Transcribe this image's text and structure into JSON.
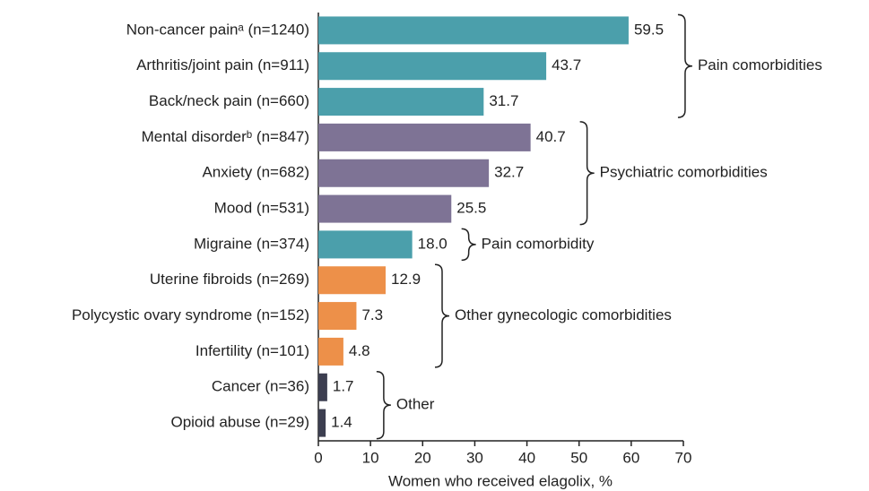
{
  "chart_data": {
    "type": "hbar",
    "categories": [
      "Non-cancer painᵃ (n=1240)",
      "Arthritis/joint pain (n=911)",
      "Back/neck pain (n=660)",
      "Mental disorderᵇ (n=847)",
      "Anxiety (n=682)",
      "Mood (n=531)",
      "Migraine (n=374)",
      "Uterine fibroids (n=269)",
      "Polycystic ovary syndrome (n=152)",
      "Infertility (n=101)",
      "Cancer (n=36)",
      "Opioid abuse (n=29)"
    ],
    "values": [
      59.5,
      43.7,
      31.7,
      40.7,
      32.7,
      25.5,
      18,
      12.9,
      7.3,
      4.8,
      1.7,
      1.4
    ],
    "value_labels": [
      "59.5",
      "43.7",
      "31.7",
      "40.7",
      "32.7",
      "25.5",
      "18.0",
      "12.9",
      "7.3",
      "4.8",
      "1.7",
      "1.4"
    ],
    "colors": [
      "#4b9fab",
      "#4b9fab",
      "#4b9fab",
      "#7e7395",
      "#7e7395",
      "#7e7395",
      "#4b9fab",
      "#ed9049",
      "#ed9049",
      "#ed9049",
      "#3c3e50",
      "#3c3e50"
    ],
    "xlim": [
      0,
      70
    ],
    "xticks": [
      0,
      10,
      20,
      30,
      40,
      50,
      60,
      70
    ],
    "xlabel": "Women who received elagolix, %",
    "groups": [
      {
        "label": "Pain comorbidities",
        "first": 0,
        "last": 2
      },
      {
        "label": "Psychiatric comorbidities",
        "first": 3,
        "last": 5
      },
      {
        "label": "Pain comorbidity",
        "first": 6,
        "last": 6
      },
      {
        "label": "Other gynecologic comorbidities",
        "first": 7,
        "last": 9
      },
      {
        "label": "Other",
        "first": 10,
        "last": 11
      }
    ]
  }
}
